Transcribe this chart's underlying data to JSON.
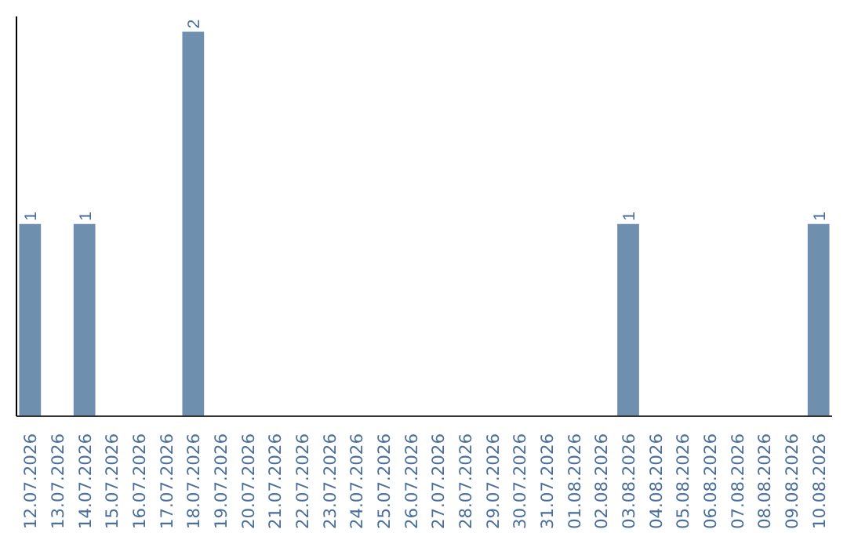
{
  "chart_data": {
    "type": "bar",
    "categories": [
      "12.07.2026",
      "13.07.2026",
      "14.07.2026",
      "15.07.2026",
      "16.07.2026",
      "17.07.2026",
      "18.07.2026",
      "19.07.2026",
      "20.07.2026",
      "21.07.2026",
      "22.07.2026",
      "23.07.2026",
      "24.07.2026",
      "25.07.2026",
      "26.07.2026",
      "27.07.2026",
      "28.07.2026",
      "29.07.2026",
      "30.07.2026",
      "31.07.2026",
      "01.08.2026",
      "02.08.2026",
      "03.08.2026",
      "04.08.2026",
      "05.08.2026",
      "06.08.2026",
      "07.08.2026",
      "08.08.2026",
      "09.08.2026",
      "10.08.2026"
    ],
    "values": [
      1,
      0,
      1,
      0,
      0,
      0,
      2,
      0,
      0,
      0,
      0,
      0,
      0,
      0,
      0,
      0,
      0,
      0,
      0,
      0,
      0,
      0,
      1,
      0,
      0,
      0,
      0,
      0,
      0,
      1
    ],
    "value_labels": [
      "1",
      null,
      "1",
      null,
      null,
      null,
      "2",
      null,
      null,
      null,
      null,
      null,
      null,
      null,
      null,
      null,
      null,
      null,
      null,
      null,
      null,
      null,
      "1",
      null,
      null,
      null,
      null,
      null,
      null,
      "1"
    ],
    "color": "#6e8fae",
    "ylim": [
      0,
      2.08
    ],
    "tick_labels": "x"
  }
}
